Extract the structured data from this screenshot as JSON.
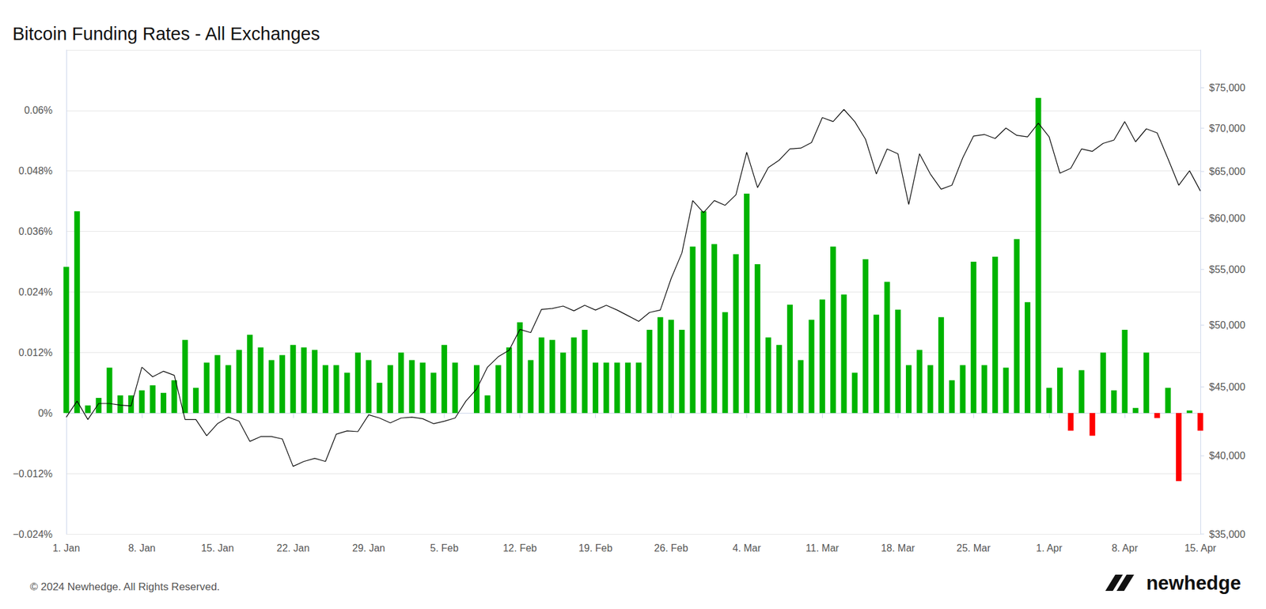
{
  "chart_data": {
    "type": "bar",
    "title": "Bitcoin Funding Rates - All Exchanges",
    "credits": "© 2024 Newhedge. All Rights Reserved.",
    "logo": "newhedge",
    "categories": [
      "1. Jan",
      null,
      null,
      null,
      null,
      null,
      null,
      "8. Jan",
      null,
      null,
      null,
      null,
      null,
      null,
      "15. Jan",
      null,
      null,
      null,
      null,
      null,
      null,
      "22. Jan",
      null,
      null,
      null,
      null,
      null,
      null,
      "29. Jan",
      null,
      null,
      null,
      null,
      null,
      null,
      "5. Feb",
      null,
      null,
      null,
      null,
      null,
      null,
      "12. Feb",
      null,
      null,
      null,
      null,
      null,
      null,
      "19. Feb",
      null,
      null,
      null,
      null,
      null,
      null,
      "26. Feb",
      null,
      null,
      null,
      null,
      null,
      null,
      "4. Mar",
      null,
      null,
      null,
      null,
      null,
      null,
      "11. Mar",
      null,
      null,
      null,
      null,
      null,
      null,
      "18. Mar",
      null,
      null,
      null,
      null,
      null,
      null,
      "25. Mar",
      null,
      null,
      null,
      null,
      null,
      null,
      "1. Apr",
      null,
      null,
      null,
      null,
      null,
      null,
      "8. Apr",
      null,
      null,
      null,
      null,
      null,
      null,
      "15. Apr"
    ],
    "series": [
      {
        "type": "bar",
        "values": [
          0.029,
          0.04,
          0.0015,
          0.003,
          0.009,
          0.0035,
          0.0035,
          0.0045,
          0.0055,
          0.004,
          0.0065,
          0.0145,
          0.005,
          0.01,
          0.0115,
          0.0095,
          0.0125,
          0.0155,
          0.013,
          0.0105,
          0.0115,
          0.0135,
          0.013,
          0.0125,
          0.0095,
          0.0095,
          0.008,
          0.012,
          0.0105,
          0.006,
          0.0095,
          0.012,
          0.0105,
          0.01,
          0.008,
          0.0135,
          0.01,
          null,
          0.0095,
          0.0035,
          0.0095,
          0.013,
          0.018,
          0.0105,
          0.015,
          0.0145,
          0.012,
          0.015,
          0.0165,
          0.01,
          0.01,
          0.01,
          0.01,
          0.01,
          0.0165,
          0.019,
          0.0185,
          0.0165,
          0.033,
          0.04,
          0.0335,
          0.02,
          0.0315,
          0.0435,
          0.0295,
          0.015,
          0.0135,
          0.0215,
          0.0105,
          0.0185,
          0.0225,
          0.033,
          0.0235,
          0.008,
          0.0305,
          0.0195,
          0.026,
          0.0205,
          0.0095,
          0.0125,
          0.0095,
          0.019,
          0.0065,
          0.0095,
          0.03,
          0.0095,
          0.031,
          0.009,
          0.0345,
          0.022,
          0.0625,
          0.005,
          0.009,
          -0.0035,
          0.0085,
          -0.0045,
          0.012,
          0.0045,
          0.0165,
          0.001,
          0.012,
          -0.001,
          0.005,
          -0.0135,
          0.0005,
          -0.0035
        ],
        "colors": [
          "#00b400",
          "#00b400",
          "#00b400",
          "#00b400",
          "#00b400",
          "#00b400",
          "#00b400",
          "#00b400",
          "#00b400",
          "#00b400",
          "#00b400",
          "#00b400",
          "#00b400",
          "#00b400",
          "#00b400",
          "#00b400",
          "#00b400",
          "#00b400",
          "#00b400",
          "#00b400",
          "#00b400",
          "#00b400",
          "#00b400",
          "#00b400",
          "#00b400",
          "#00b400",
          "#00b400",
          "#00b400",
          "#00b400",
          "#00b400",
          "#00b400",
          "#00b400",
          "#00b400",
          "#00b400",
          "#00b400",
          "#00b400",
          "#00b400",
          "#00b400",
          "#00b400",
          "#00b400",
          "#00b400",
          "#00b400",
          "#00b400",
          "#00b400",
          "#00b400",
          "#00b400",
          "#00b400",
          "#00b400",
          "#00b400",
          "#00b400",
          "#00b400",
          "#00b400",
          "#00b400",
          "#00b400",
          "#00b400",
          "#00b400",
          "#00b400",
          "#00b400",
          "#00b400",
          "#00b400",
          "#00b400",
          "#00b400",
          "#00b400",
          "#00b400",
          "#00b400",
          "#00b400",
          "#00b400",
          "#00b400",
          "#00b400",
          "#00b400",
          "#00b400",
          "#00b400",
          "#00b400",
          "#00b400",
          "#00b400",
          "#00b400",
          "#00b400",
          "#00b400",
          "#00b400",
          "#00b400",
          "#00b400",
          "#00b400",
          "#00b400",
          "#00b400",
          "#00b400",
          "#00b400",
          "#00b400",
          "#00b400",
          "#00b400",
          "#00b400",
          "#00b400",
          "#00b400",
          "#00b400",
          "#ff0000",
          "#00b400",
          "#ff0000",
          "#00b400",
          "#00b400",
          "#00b400",
          "#00b400",
          "#00b400",
          "#ff0000",
          "#00b400",
          "#ff0000",
          "#00b400",
          "#ff0000"
        ]
      },
      {
        "type": "line",
        "axis": "y2",
        "color": "#000000",
        "values": [
          42730,
          43920,
          42560,
          43740,
          43740,
          43620,
          43560,
          46540,
          45780,
          46220,
          45900,
          42560,
          42560,
          41400,
          42260,
          42730,
          42440,
          41000,
          41340,
          41340,
          41170,
          39290,
          39620,
          39830,
          39620,
          41510,
          41740,
          41690,
          42900,
          42670,
          42320,
          42670,
          42730,
          42620,
          42260,
          42440,
          42670,
          43920,
          44840,
          46540,
          47380,
          47900,
          49640,
          49370,
          51370,
          51450,
          51660,
          51240,
          51730,
          51310,
          51730,
          51310,
          50820,
          50330,
          51100,
          51310,
          54140,
          56570,
          61860,
          60600,
          61860,
          61360,
          62470,
          67180,
          63240,
          65450,
          66270,
          67560,
          67650,
          68300,
          71280,
          70790,
          72270,
          70790,
          68680,
          64730,
          67560,
          67000,
          61440,
          67000,
          64730,
          63070,
          63500,
          66540,
          69060,
          69250,
          68770,
          70010,
          69150,
          68960,
          70600,
          68960,
          64820,
          65360,
          67560,
          67280,
          68210,
          68590,
          70790,
          68390,
          69920,
          69440,
          66450,
          63500,
          65090,
          62890
        ]
      }
    ],
    "ylim": [
      -0.024,
      0.072
    ],
    "yticks": [
      {
        "value": -0.024,
        "label": "−0.024%"
      },
      {
        "value": -0.012,
        "label": "−0.012%"
      },
      {
        "value": 0,
        "label": "0%"
      },
      {
        "value": 0.012,
        "label": "0.012%"
      },
      {
        "value": 0.024,
        "label": "0.024%"
      },
      {
        "value": 0.036,
        "label": "0.036%"
      },
      {
        "value": 0.048,
        "label": "0.048%"
      },
      {
        "value": 0.06,
        "label": "0.06%"
      }
    ],
    "y2lim": [
      35000,
      80000
    ],
    "y2ticks": [
      {
        "value": 35000,
        "label": "$35,000"
      },
      {
        "value": 40000,
        "label": "$40,000"
      },
      {
        "value": 45000,
        "label": "$45,000"
      },
      {
        "value": 50000,
        "label": "$50,000"
      },
      {
        "value": 55000,
        "label": "$55,000"
      },
      {
        "value": 60000,
        "label": "$60,000"
      },
      {
        "value": 65000,
        "label": "$65,000"
      },
      {
        "value": 70000,
        "label": "$70,000"
      },
      {
        "value": 75000,
        "label": "$75,000"
      }
    ],
    "log": "y2",
    "grid": true
  }
}
